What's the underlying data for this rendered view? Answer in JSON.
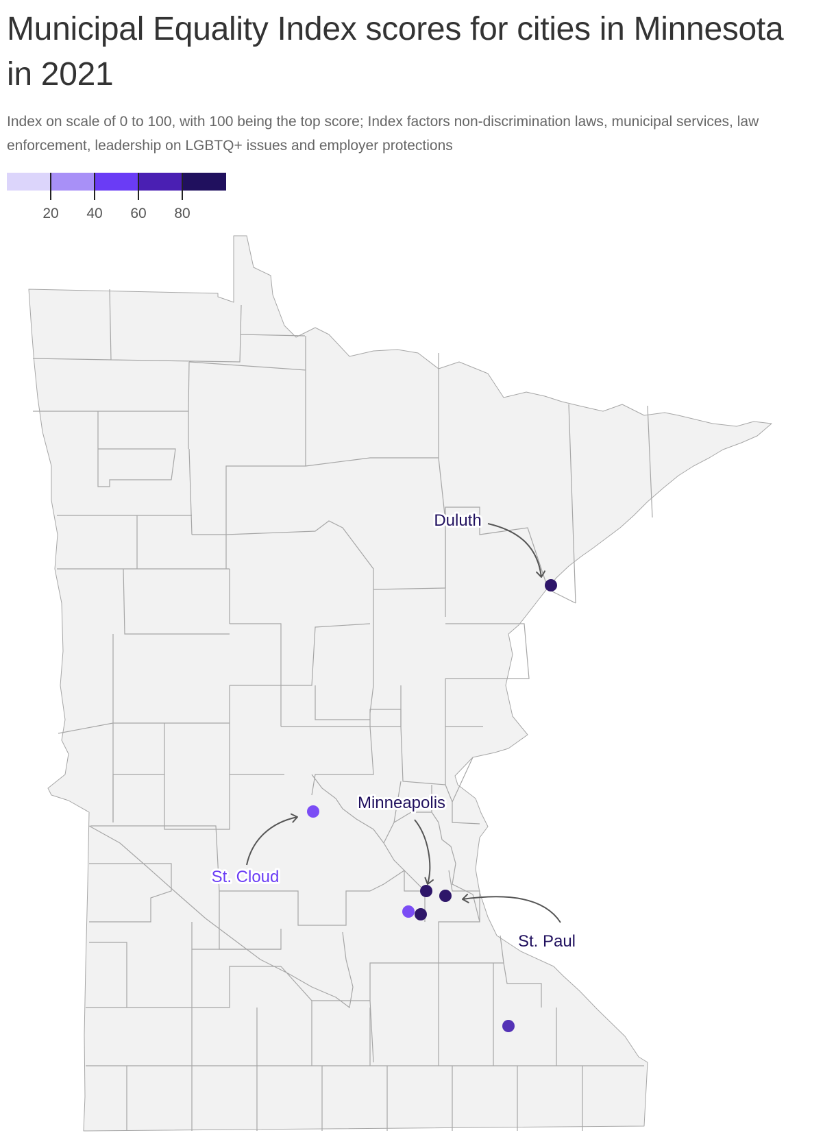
{
  "title": "Municipal Equality Index scores for cities in Minnesota in 2021",
  "subtitle": "Index on scale of 0 to 100, with 100 being the top score; Index factors non-discrimination laws, municipal services, law enforcement, leadership on LGBTQ+ issues and employer protections",
  "legend": {
    "colors": [
      "#dcd5fb",
      "#a890f7",
      "#6a3cf5",
      "#4a1fb3",
      "#20105e"
    ],
    "ticks": [
      "20",
      "40",
      "60",
      "80"
    ]
  },
  "map_colors": {
    "land": "#f2f2f2",
    "border": "#a6a6a6"
  },
  "cities": [
    {
      "label": "Duluth",
      "color": "#2e1669",
      "label_color": "#20105e"
    },
    {
      "label": "St. Cloud",
      "color": "#7b4df5",
      "label_color": "#6a3cf5"
    },
    {
      "label": "Minneapolis",
      "color": "#2e1669",
      "label_color": "#20105e"
    },
    {
      "label": "St. Paul",
      "color": "#2e1669",
      "label_color": "#20105e"
    },
    {
      "label": "",
      "color": "#7b4df5"
    },
    {
      "label": "",
      "color": "#2e1669"
    },
    {
      "label": "",
      "color": "#5432b6"
    }
  ]
}
